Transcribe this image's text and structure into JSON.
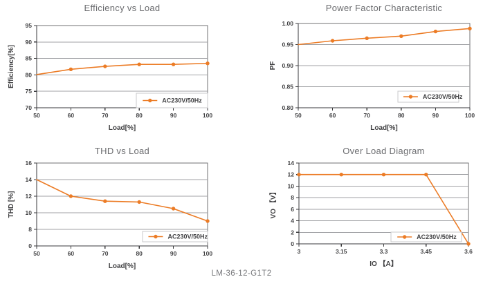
{
  "footer": {
    "model": "LM-36-12-G1T2"
  },
  "colors": {
    "line": "#EC7C26",
    "grid": "#A0A1A4",
    "frame": "#707173",
    "axis": "#3A3A3C",
    "tick_label": "#3F3F41",
    "axis_label": "#3F3F41",
    "title": "#6B6C6F",
    "legend_border": "#C9C9CB",
    "legend_bg": "#FFFFFF",
    "footer_text": "#77787B"
  },
  "chart_data": [
    {
      "type": "line",
      "title": "Efficiency vs Load",
      "xlabel": "Load[%]",
      "ylabel": "Efficiency[%]",
      "xticks": [
        "50",
        "60",
        "70",
        "80",
        "90",
        "100"
      ],
      "yticks": [
        "70",
        "75",
        "80",
        "85",
        "90",
        "95"
      ],
      "xlim": [
        50,
        100
      ],
      "ylim": [
        70,
        95
      ],
      "grid": "horizontal",
      "legend_position": "bottom-right",
      "series": [
        {
          "name": "AC230V/50Hz",
          "x": [
            50,
            60,
            70,
            80,
            90,
            100
          ],
          "y": [
            80.1,
            81.7,
            82.6,
            83.2,
            83.2,
            83.5
          ],
          "marker_skip_first": true
        }
      ]
    },
    {
      "type": "line",
      "title": "Power Factor Characteristic",
      "xlabel": "Load[%]",
      "ylabel": "PF",
      "xticks": [
        "50",
        "60",
        "70",
        "80",
        "90",
        "100"
      ],
      "yticks": [
        "0.80",
        "0.85",
        "0.90",
        "0.95",
        "1.00"
      ],
      "xlim": [
        50,
        100
      ],
      "ylim": [
        0.8,
        1.0
      ],
      "grid": "horizontal",
      "legend_position": "bottom-right",
      "series": [
        {
          "name": "AC230V/50Hz",
          "x": [
            50,
            60,
            70,
            80,
            90,
            100
          ],
          "y": [
            0.95,
            0.959,
            0.965,
            0.97,
            0.981,
            0.988
          ],
          "marker_skip_first": true
        }
      ]
    },
    {
      "type": "line",
      "title": "THD vs Load",
      "xlabel": "Load[%]",
      "ylabel": "THD [%]",
      "xticks": [
        "50",
        "60",
        "70",
        "80",
        "90",
        "100"
      ],
      "yticks": [
        "0",
        "8",
        "10",
        "12",
        "14",
        "16"
      ],
      "yscale": "broken-even-ticks",
      "xlim": [
        50,
        100
      ],
      "ylim": [
        0,
        16
      ],
      "grid": "horizontal",
      "legend_position": "bottom-right",
      "series": [
        {
          "name": "AC230V/50Hz",
          "x": [
            50,
            60,
            70,
            80,
            90,
            100
          ],
          "y": [
            14.0,
            12.0,
            11.4,
            11.3,
            10.5,
            9.0
          ],
          "marker_skip_first": true
        }
      ]
    },
    {
      "type": "line",
      "title": "Over Load Diagram",
      "xlabel": "IO 【A】",
      "ylabel": "VO 【V】",
      "xticks": [
        "3",
        "3.15",
        "3.3",
        "3.45",
        "3.6"
      ],
      "yticks": [
        "0",
        "2",
        "4",
        "6",
        "8",
        "10",
        "12",
        "14"
      ],
      "xlim": [
        3,
        3.6
      ],
      "ylim": [
        0,
        14
      ],
      "grid": "horizontal",
      "legend_position": "bottom-right",
      "series": [
        {
          "name": "AC230V/50Hz",
          "x": [
            3,
            3.15,
            3.3,
            3.45,
            3.6
          ],
          "y": [
            12,
            12,
            12,
            12,
            0
          ],
          "marker_skip_first": false
        }
      ]
    }
  ]
}
